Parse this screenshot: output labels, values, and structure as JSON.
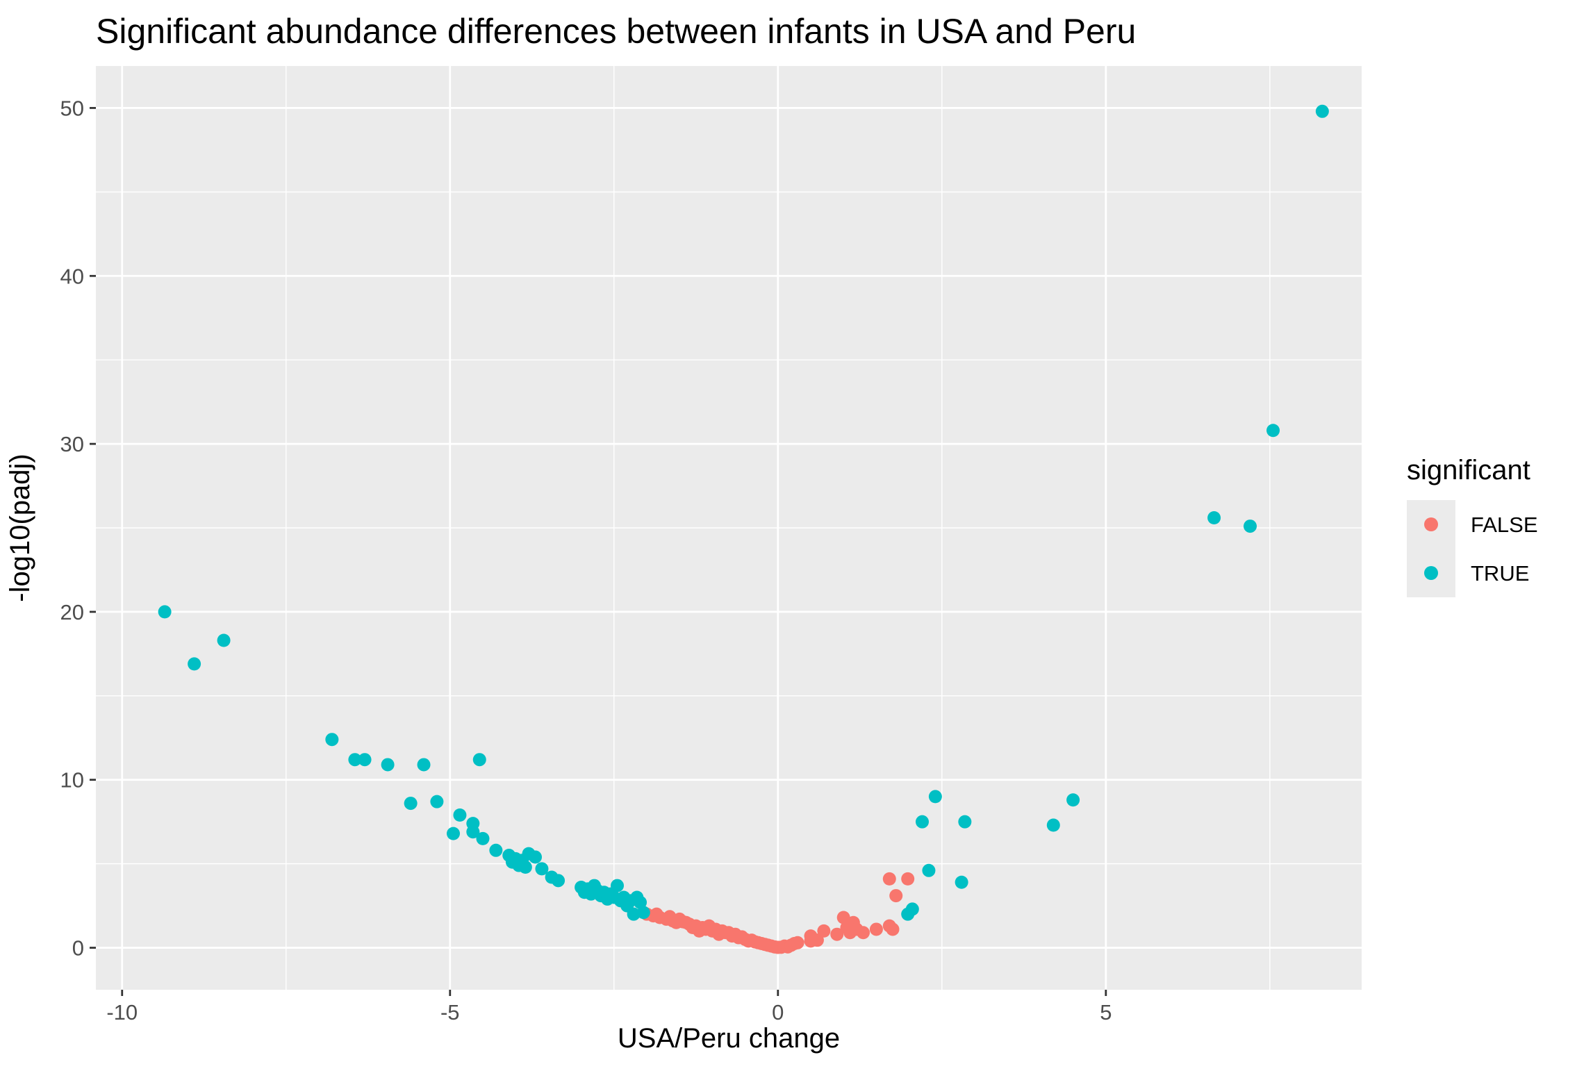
{
  "chart_data": {
    "type": "scatter",
    "title": "Significant abundance differences between infants in USA and Peru",
    "xlabel": "USA/Peru change",
    "ylabel": "-log10(padj)",
    "xlim": [
      -10.4,
      8.9
    ],
    "ylim": [
      -2.5,
      52.5
    ],
    "x_ticks": [
      -10,
      -5,
      0,
      5
    ],
    "x_tick_labels": [
      "-10",
      "-5",
      "0",
      "5"
    ],
    "y_ticks": [
      0,
      10,
      20,
      30,
      40,
      50
    ],
    "y_tick_labels": [
      "0",
      "10",
      "20",
      "30",
      "40",
      "50"
    ],
    "grid": true,
    "background": "#ebebeb",
    "legend": {
      "title": "significant",
      "placement": "right",
      "entries": [
        {
          "label": "FALSE",
          "color": "#f8766d"
        },
        {
          "label": "TRUE",
          "color": "#00bfc4"
        }
      ]
    },
    "series": [
      {
        "name": "FALSE",
        "color": "#f8766d",
        "points": [
          [
            -2.0,
            2.0
          ],
          [
            -1.9,
            1.9
          ],
          [
            -1.85,
            2.0
          ],
          [
            -1.8,
            1.8
          ],
          [
            -1.7,
            1.7
          ],
          [
            -1.65,
            1.85
          ],
          [
            -1.6,
            1.6
          ],
          [
            -1.55,
            1.5
          ],
          [
            -1.5,
            1.7
          ],
          [
            -1.45,
            1.55
          ],
          [
            -1.4,
            1.5
          ],
          [
            -1.35,
            1.4
          ],
          [
            -1.3,
            1.2
          ],
          [
            -1.25,
            1.3
          ],
          [
            -1.2,
            1.0
          ],
          [
            -1.15,
            1.2
          ],
          [
            -1.1,
            1.1
          ],
          [
            -1.05,
            1.3
          ],
          [
            -1.0,
            1.0
          ],
          [
            -0.95,
            1.1
          ],
          [
            -0.9,
            0.8
          ],
          [
            -0.85,
            1.0
          ],
          [
            -0.8,
            0.9
          ],
          [
            -0.75,
            0.9
          ],
          [
            -0.7,
            0.7
          ],
          [
            -0.65,
            0.8
          ],
          [
            -0.6,
            0.6
          ],
          [
            -0.55,
            0.65
          ],
          [
            -0.5,
            0.5
          ],
          [
            -0.45,
            0.4
          ],
          [
            -0.4,
            0.45
          ],
          [
            -0.35,
            0.35
          ],
          [
            -0.3,
            0.3
          ],
          [
            -0.25,
            0.25
          ],
          [
            -0.2,
            0.2
          ],
          [
            -0.15,
            0.15
          ],
          [
            -0.1,
            0.1
          ],
          [
            -0.05,
            0.05
          ],
          [
            0.0,
            0.02
          ],
          [
            0.05,
            0.03
          ],
          [
            0.1,
            0.1
          ],
          [
            0.15,
            0.05
          ],
          [
            0.2,
            0.15
          ],
          [
            0.25,
            0.25
          ],
          [
            0.3,
            0.3
          ],
          [
            0.5,
            0.4
          ],
          [
            0.55,
            0.5
          ],
          [
            0.6,
            0.45
          ],
          [
            0.5,
            0.7
          ],
          [
            0.7,
            1.0
          ],
          [
            0.9,
            0.8
          ],
          [
            1.0,
            1.8
          ],
          [
            1.05,
            1.2
          ],
          [
            1.1,
            0.9
          ],
          [
            1.15,
            1.5
          ],
          [
            1.2,
            1.1
          ],
          [
            1.3,
            0.9
          ],
          [
            1.5,
            1.1
          ],
          [
            1.7,
            1.3
          ],
          [
            1.75,
            1.1
          ],
          [
            1.7,
            4.1
          ],
          [
            1.8,
            3.1
          ],
          [
            1.98,
            4.1
          ]
        ]
      },
      {
        "name": "TRUE",
        "color": "#00bfc4",
        "points": [
          [
            -9.35,
            20.0
          ],
          [
            -8.9,
            16.9
          ],
          [
            -8.45,
            18.3
          ],
          [
            -6.8,
            12.4
          ],
          [
            -6.45,
            11.2
          ],
          [
            -6.3,
            11.2
          ],
          [
            -5.95,
            10.9
          ],
          [
            -5.6,
            8.6
          ],
          [
            -5.4,
            10.9
          ],
          [
            -5.2,
            8.7
          ],
          [
            -4.95,
            6.8
          ],
          [
            -4.85,
            7.9
          ],
          [
            -4.65,
            7.4
          ],
          [
            -4.65,
            6.9
          ],
          [
            -4.55,
            11.2
          ],
          [
            -4.5,
            6.5
          ],
          [
            -4.3,
            5.8
          ],
          [
            -4.1,
            5.5
          ],
          [
            -4.05,
            5.1
          ],
          [
            -4.0,
            5.3
          ],
          [
            -3.95,
            4.9
          ],
          [
            -3.9,
            5.2
          ],
          [
            -3.85,
            4.8
          ],
          [
            -3.8,
            5.6
          ],
          [
            -3.7,
            5.4
          ],
          [
            -3.6,
            4.7
          ],
          [
            -3.45,
            4.2
          ],
          [
            -3.35,
            4.0
          ],
          [
            -3.0,
            3.6
          ],
          [
            -2.95,
            3.3
          ],
          [
            -2.9,
            3.5
          ],
          [
            -2.85,
            3.2
          ],
          [
            -2.8,
            3.7
          ],
          [
            -2.75,
            3.4
          ],
          [
            -2.7,
            3.1
          ],
          [
            -2.65,
            3.3
          ],
          [
            -2.6,
            2.9
          ],
          [
            -2.55,
            3.2
          ],
          [
            -2.5,
            3.0
          ],
          [
            -2.45,
            3.7
          ],
          [
            -2.4,
            2.8
          ],
          [
            -2.35,
            3.0
          ],
          [
            -2.3,
            2.5
          ],
          [
            -2.25,
            2.8
          ],
          [
            -2.2,
            2.0
          ],
          [
            -2.15,
            3.0
          ],
          [
            -2.1,
            2.7
          ],
          [
            -2.05,
            2.1
          ],
          [
            1.98,
            2.0
          ],
          [
            2.05,
            2.3
          ],
          [
            2.2,
            7.5
          ],
          [
            2.3,
            4.6
          ],
          [
            2.4,
            9.0
          ],
          [
            2.8,
            3.9
          ],
          [
            2.85,
            7.5
          ],
          [
            4.2,
            7.3
          ],
          [
            4.5,
            8.8
          ],
          [
            6.65,
            25.6
          ],
          [
            7.2,
            25.1
          ],
          [
            7.55,
            30.8
          ],
          [
            8.3,
            49.8
          ]
        ]
      }
    ]
  }
}
